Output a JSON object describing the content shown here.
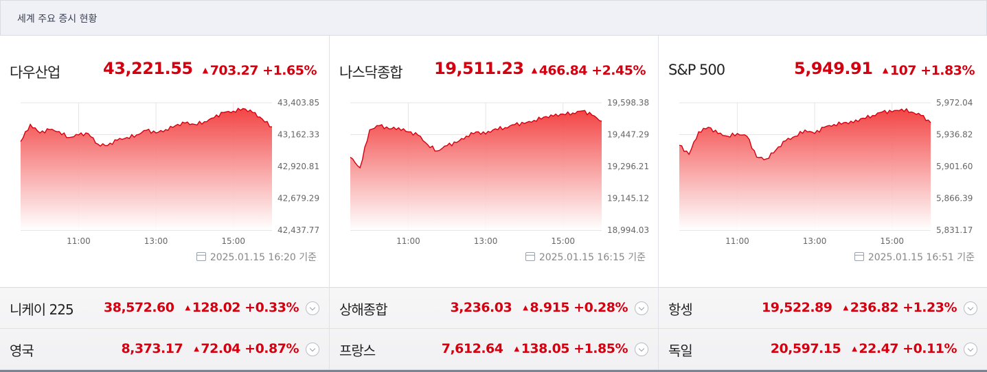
{
  "header": {
    "title": "세계 주요 증시 현황"
  },
  "accent_color": "#d4000f",
  "panels": [
    {
      "name": "다우산업",
      "value": "43,221.55",
      "change": "703.27",
      "pct": "+1.65%",
      "direction": "up",
      "timestamp": "2025.01.15 16:20 기준",
      "chart_data": {
        "type": "area",
        "y_ticks": [
          "43,403.85",
          "43,162.33",
          "42,920.81",
          "42,679.29",
          "42,437.77"
        ],
        "x_ticks": [
          "11:00",
          "13:00",
          "15:00"
        ],
        "ylim": [
          42437.77,
          43403.85
        ],
        "x": [
          "09:30",
          "09:45",
          "10:00",
          "10:15",
          "10:30",
          "10:45",
          "11:00",
          "11:15",
          "11:30",
          "11:45",
          "12:00",
          "12:15",
          "12:30",
          "12:45",
          "13:00",
          "13:15",
          "13:30",
          "13:45",
          "14:00",
          "14:15",
          "14:30",
          "14:45",
          "15:00",
          "15:15",
          "15:30",
          "15:45",
          "16:00"
        ],
        "values": [
          43110,
          43240,
          43175,
          43200,
          43185,
          43140,
          43160,
          43170,
          43090,
          43080,
          43120,
          43140,
          43160,
          43195,
          43175,
          43200,
          43230,
          43250,
          43240,
          43260,
          43290,
          43330,
          43340,
          43360,
          43330,
          43280,
          43221
        ]
      }
    },
    {
      "name": "나스닥종합",
      "value": "19,511.23",
      "change": "466.84",
      "pct": "+2.45%",
      "direction": "up",
      "timestamp": "2025.01.15 16:15 기준",
      "chart_data": {
        "type": "area",
        "y_ticks": [
          "19,598.38",
          "19,447.29",
          "19,296.21",
          "19,145.12",
          "18,994.03"
        ],
        "x_ticks": [
          "11:00",
          "13:00",
          "15:00"
        ],
        "ylim": [
          18994.03,
          19598.38
        ],
        "x": [
          "09:30",
          "09:45",
          "10:00",
          "10:15",
          "10:30",
          "10:45",
          "11:00",
          "11:15",
          "11:30",
          "11:45",
          "12:00",
          "12:15",
          "12:30",
          "12:45",
          "13:00",
          "13:15",
          "13:30",
          "13:45",
          "14:00",
          "14:15",
          "14:30",
          "14:45",
          "15:00",
          "15:15",
          "15:30",
          "15:45",
          "16:00"
        ],
        "values": [
          19340,
          19290,
          19470,
          19490,
          19475,
          19480,
          19460,
          19445,
          19400,
          19370,
          19395,
          19410,
          19440,
          19460,
          19450,
          19475,
          19480,
          19495,
          19500,
          19515,
          19530,
          19535,
          19545,
          19550,
          19560,
          19540,
          19511
        ]
      }
    },
    {
      "name": "S&P 500",
      "value": "5,949.91",
      "change": "107",
      "pct": "+1.83%",
      "direction": "up",
      "timestamp": "2025.01.15 16:51 기준",
      "chart_data": {
        "type": "area",
        "y_ticks": [
          "5,972.04",
          "5,936.82",
          "5,901.60",
          "5,866.39",
          "5,831.17"
        ],
        "x_ticks": [
          "11:00",
          "13:00",
          "15:00"
        ],
        "ylim": [
          5831.17,
          5972.04
        ],
        "x": [
          "09:30",
          "09:45",
          "10:00",
          "10:15",
          "10:30",
          "10:45",
          "11:00",
          "11:15",
          "11:30",
          "11:45",
          "12:00",
          "12:15",
          "12:30",
          "12:45",
          "13:00",
          "13:15",
          "13:30",
          "13:45",
          "14:00",
          "14:15",
          "14:30",
          "14:45",
          "15:00",
          "15:15",
          "15:30",
          "15:45",
          "16:00"
        ],
        "values": [
          5925,
          5915,
          5940,
          5945,
          5938,
          5935,
          5938,
          5935,
          5912,
          5910,
          5920,
          5930,
          5935,
          5942,
          5938,
          5945,
          5948,
          5950,
          5950,
          5955,
          5958,
          5962,
          5962,
          5965,
          5962,
          5958,
          5950
        ]
      }
    }
  ],
  "markets": [
    {
      "name": "니케이 225",
      "value": "38,572.60",
      "change": "128.02",
      "pct": "+0.33%",
      "direction": "up"
    },
    {
      "name": "상해종합",
      "value": "3,236.03",
      "change": "8.915",
      "pct": "+0.28%",
      "direction": "up"
    },
    {
      "name": "항셍",
      "value": "19,522.89",
      "change": "236.82",
      "pct": "+1.23%",
      "direction": "up"
    },
    {
      "name": "영국",
      "value": "8,373.17",
      "change": "72.04",
      "pct": "+0.87%",
      "direction": "up"
    },
    {
      "name": "프랑스",
      "value": "7,612.64",
      "change": "138.05",
      "pct": "+1.85%",
      "direction": "up"
    },
    {
      "name": "독일",
      "value": "20,597.15",
      "change": "22.47",
      "pct": "+0.11%",
      "direction": "up"
    }
  ]
}
